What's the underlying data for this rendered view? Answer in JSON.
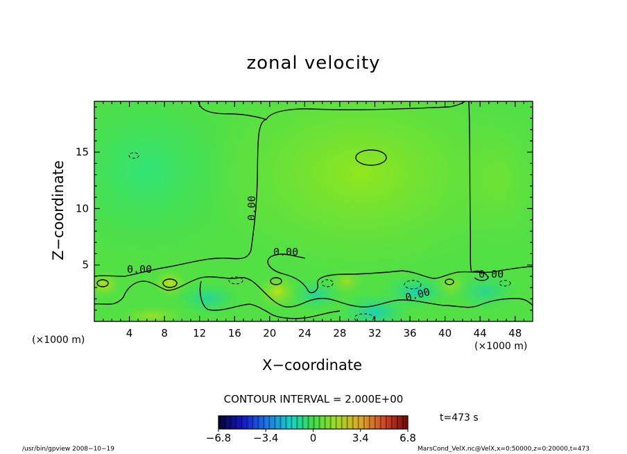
{
  "chart_data": {
    "type": "heatmap",
    "title": "zonal velocity",
    "xlabel": "X−coordinate",
    "ylabel": "Z−coordinate",
    "x_unit_label": "(×1000 m)",
    "xlim": [
      0,
      50
    ],
    "ylim": [
      0,
      19.5
    ],
    "x_ticks": [
      4,
      8,
      12,
      16,
      20,
      24,
      28,
      32,
      36,
      40,
      44,
      48
    ],
    "y_ticks": [
      5,
      10,
      15
    ],
    "contour_interval": "CONTOUR INTERVAL = 2.000E+00",
    "contour_labels": [
      "0.00",
      "0.00",
      "0.00",
      "0.00",
      "0.00"
    ],
    "colorbar": {
      "ticks": [
        "−6.8",
        "−3.4",
        "0",
        "3.4",
        "6.8"
      ],
      "range": [
        -6.8,
        6.8
      ]
    },
    "time_label": "t=473 s",
    "field_samples": [
      {
        "x": 5,
        "z": 15,
        "u": -1.6
      },
      {
        "x": 4,
        "z": 12,
        "u": -1.2
      },
      {
        "x": 12,
        "z": 15,
        "u": -0.8
      },
      {
        "x": 30,
        "z": 15,
        "u": 1.6
      },
      {
        "x": 26,
        "z": 12,
        "u": 1.2
      },
      {
        "x": 36,
        "z": 10,
        "u": 0.8
      },
      {
        "x": 46,
        "z": 14,
        "u": 0.3
      },
      {
        "x": 21,
        "z": 2,
        "u": 1.2
      },
      {
        "x": 29,
        "z": 1,
        "u": -2.2
      },
      {
        "x": 36,
        "z": 3,
        "u": -2.0
      },
      {
        "x": 12,
        "z": 3,
        "u": -1.8
      },
      {
        "x": 3,
        "z": 3,
        "u": 1.2
      },
      {
        "x": 9,
        "z": 3,
        "u": 1.6
      }
    ]
  },
  "footer": {
    "left": "/usr/bin/gpview   2008−10−19",
    "right": "MarsCond_VelX.nc@VelX,x=0:50000,z=0:20000,t=473"
  }
}
